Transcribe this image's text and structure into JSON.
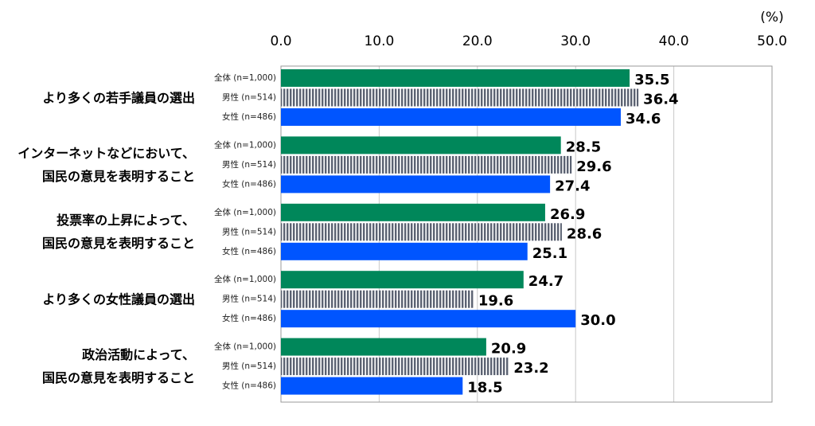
{
  "chart_data": {
    "type": "bar",
    "orientation": "horizontal",
    "x_label": "(%)",
    "categories": [
      "より多くの若手議員の選出",
      "インターネットなどにおいて、\n国民の意見を表明すること",
      "投票率の上昇によって、\n国民の意見を表明すること",
      "より多くの女性議員の選出",
      "政治活動によって、\n国民の意見を表明すること"
    ],
    "series": [
      {
        "name": "全体 (n=1,000)",
        "color": "#00875a",
        "values": [
          35.5,
          28.5,
          26.9,
          24.7,
          20.9
        ]
      },
      {
        "name": "男性 (n=514)",
        "color": "#5b6272",
        "pattern": "vertical-stripes",
        "values": [
          36.4,
          29.6,
          28.6,
          19.6,
          23.2
        ]
      },
      {
        "name": "女性 (n=486)",
        "color": "#0055ff",
        "values": [
          34.6,
          27.4,
          25.1,
          30.0,
          18.5
        ],
        "value_labels": [
          "34.6",
          "27.4",
          "25.1",
          "30.0",
          "18.5"
        ]
      }
    ],
    "xlim": [
      0,
      50
    ],
    "xticks": [
      {
        "value": 0,
        "label": "0.0"
      },
      {
        "value": 10,
        "label": "10.0"
      },
      {
        "value": 20,
        "label": "20.0"
      },
      {
        "value": 30,
        "label": "30.0"
      },
      {
        "value": 40,
        "label": "40.0"
      },
      {
        "value": 50,
        "label": "50.0"
      }
    ],
    "grid": true
  }
}
